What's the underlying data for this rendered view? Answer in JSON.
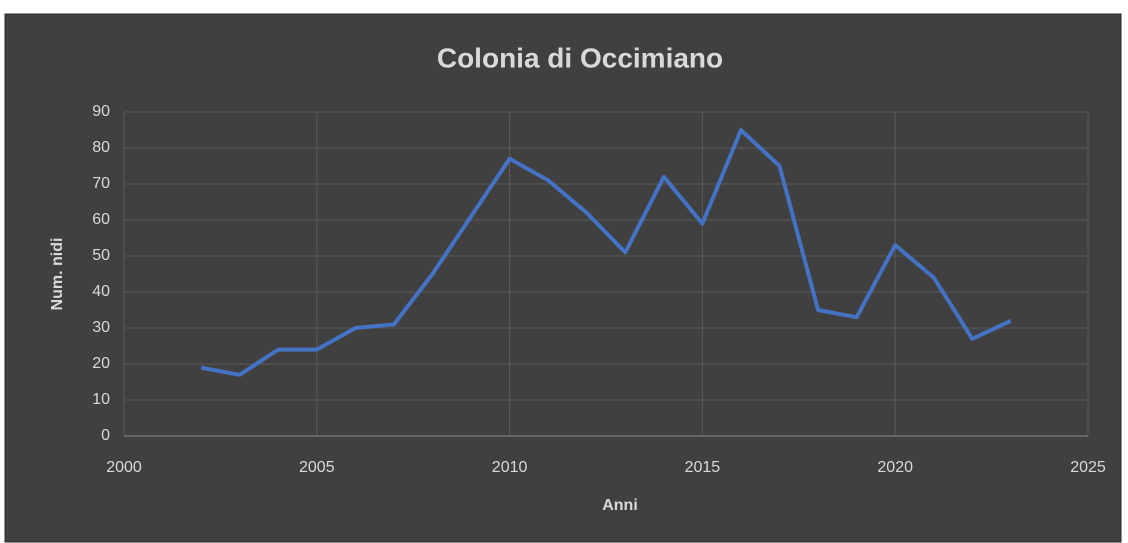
{
  "chart_data": {
    "type": "line",
    "title": "Colonia di Occimiano",
    "xlabel": "Anni",
    "ylabel": "Num. nidi",
    "x": [
      2002,
      2003,
      2004,
      2005,
      2006,
      2007,
      2008,
      2009,
      2010,
      2011,
      2012,
      2013,
      2014,
      2015,
      2016,
      2017,
      2018,
      2019,
      2020,
      2021,
      2022,
      2023
    ],
    "series": [
      {
        "name": "Num. nidi",
        "color": "#4472c4",
        "values": [
          19,
          17,
          24,
          24,
          30,
          31,
          45,
          61,
          77,
          71,
          62,
          51,
          72,
          59,
          85,
          75,
          35,
          33,
          53,
          44,
          27,
          32
        ]
      }
    ],
    "xlim": [
      2000,
      2025
    ],
    "xticks": [
      2000,
      2005,
      2010,
      2015,
      2020,
      2025
    ],
    "ylim": [
      0,
      90
    ],
    "yticks": [
      0,
      10,
      20,
      30,
      40,
      50,
      60,
      70,
      80,
      90
    ],
    "grid": true
  }
}
